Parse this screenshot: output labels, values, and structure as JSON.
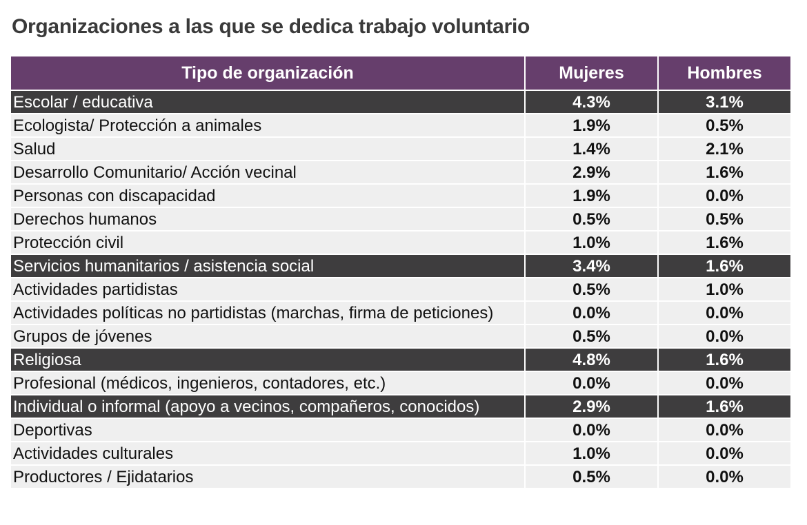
{
  "title": "Organizaciones a las que se dedica trabajo voluntario",
  "colors": {
    "header_bg": "#663e6c",
    "highlight_row_bg": "#3e3d3e",
    "row_bg": "#efefef"
  },
  "table": {
    "headers": [
      "Tipo de organización",
      "Mujeres",
      "Hombres"
    ],
    "rows": [
      {
        "label": "Escolar / educativa",
        "mujeres": "4.3%",
        "hombres": "3.1%",
        "highlight": true
      },
      {
        "label": "Ecologista/ Protección a animales",
        "mujeres": "1.9%",
        "hombres": "0.5%",
        "highlight": false
      },
      {
        "label": "Salud",
        "mujeres": "1.4%",
        "hombres": "2.1%",
        "highlight": false
      },
      {
        "label": "Desarrollo Comunitario/ Acción vecinal",
        "mujeres": "2.9%",
        "hombres": "1.6%",
        "highlight": false
      },
      {
        "label": "Personas con discapacidad",
        "mujeres": "1.9%",
        "hombres": "0.0%",
        "highlight": false
      },
      {
        "label": "Derechos humanos",
        "mujeres": "0.5%",
        "hombres": "0.5%",
        "highlight": false
      },
      {
        "label": "Protección civil",
        "mujeres": "1.0%",
        "hombres": "1.6%",
        "highlight": false
      },
      {
        "label": "Servicios humanitarios / asistencia social",
        "mujeres": "3.4%",
        "hombres": "1.6%",
        "highlight": true
      },
      {
        "label": "Actividades partidistas",
        "mujeres": "0.5%",
        "hombres": "1.0%",
        "highlight": false
      },
      {
        "label": "Actividades políticas no partidistas (marchas, firma de peticiones)",
        "mujeres": "0.0%",
        "hombres": "0.0%",
        "highlight": false
      },
      {
        "label": "Grupos de jóvenes",
        "mujeres": "0.5%",
        "hombres": "0.0%",
        "highlight": false
      },
      {
        "label": "Religiosa",
        "mujeres": "4.8%",
        "hombres": "1.6%",
        "highlight": true
      },
      {
        "label": "Profesional (médicos, ingenieros, contadores, etc.)",
        "mujeres": "0.0%",
        "hombres": "0.0%",
        "highlight": false
      },
      {
        "label": "Individual o informal (apoyo a vecinos, compañeros, conocidos)",
        "mujeres": "2.9%",
        "hombres": "1.6%",
        "highlight": true
      },
      {
        "label": "Deportivas",
        "mujeres": "0.0%",
        "hombres": "0.0%",
        "highlight": false
      },
      {
        "label": "Actividades culturales",
        "mujeres": "1.0%",
        "hombres": "0.0%",
        "highlight": false
      },
      {
        "label": "Productores / Ejidatarios",
        "mujeres": "0.5%",
        "hombres": "0.0%",
        "highlight": false
      }
    ]
  }
}
